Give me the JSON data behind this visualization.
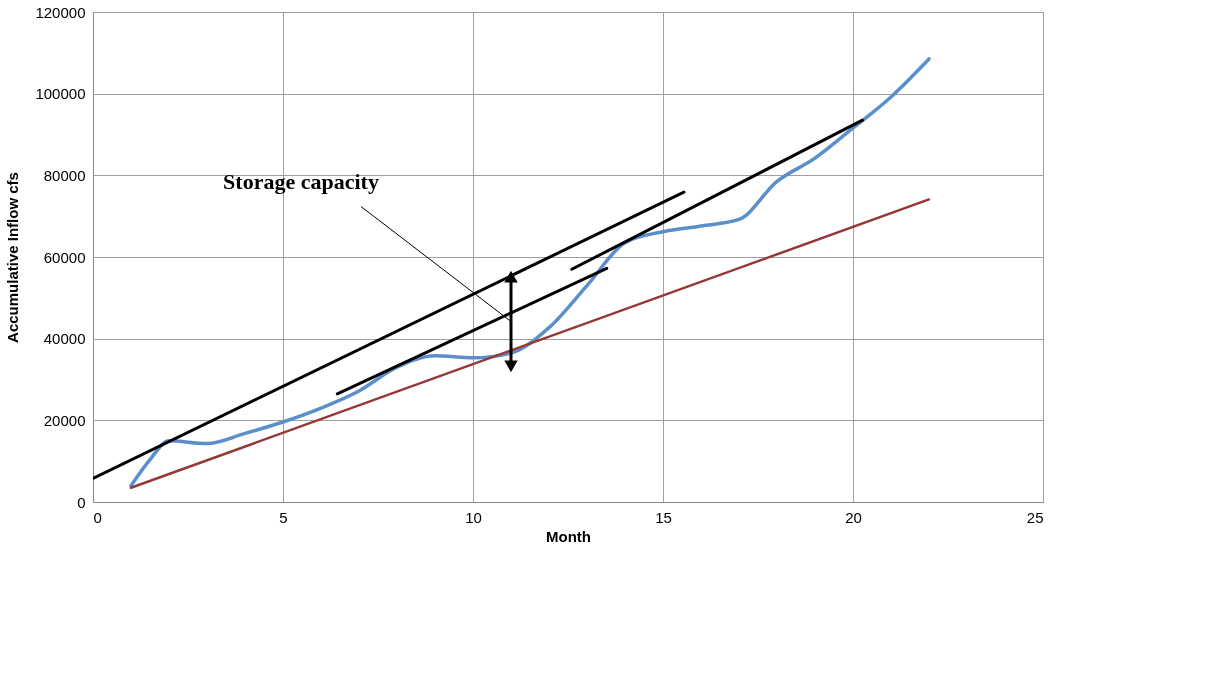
{
  "chart_data": {
    "type": "line",
    "xlabel": "Month",
    "ylabel": "Accumulative Inflow cfs",
    "xlim": [
      0,
      25
    ],
    "xticks": [
      0,
      5,
      10,
      15,
      20,
      25
    ],
    "ylim": [
      0,
      120000
    ],
    "yticks": [
      0,
      20000,
      40000,
      60000,
      80000,
      100000,
      120000
    ],
    "grid": true,
    "marker": "none",
    "line_style": "solid",
    "annotations": [
      {
        "text": "Storage capacity",
        "x": 11,
        "y": 44200
      }
    ],
    "series": [
      {
        "color": "#5b8fcb",
        "x": [
          1,
          1.5,
          2,
          3,
          4,
          5,
          6,
          7,
          8,
          9,
          10,
          11,
          12,
          13,
          14,
          15,
          16,
          17,
          18,
          19,
          20,
          21,
          22
        ],
        "values": [
          4000,
          10400,
          15000,
          14300,
          16800,
          19600,
          23000,
          27200,
          33000,
          35800,
          35300,
          36500,
          42700,
          53000,
          63500,
          66200,
          67600,
          69200,
          78500,
          84200,
          91600,
          99200,
          108500
        ]
      },
      {
        "color": "#953735",
        "x": [
          1,
          22
        ],
        "values": [
          3500,
          74100
        ]
      },
      {
        "color": "#000000",
        "x": [
          0,
          15.55
        ],
        "values": [
          5800,
          75900
        ]
      },
      {
        "color": "#000000",
        "x": [
          6.43,
          13.52
        ],
        "values": [
          26500,
          57200
        ]
      },
      {
        "color": "#000000",
        "x": [
          12.6,
          20.25
        ],
        "values": [
          57000,
          93500
        ]
      },
      {
        "color": "#000000",
        "x": [
          11,
          11
        ],
        "values": [
          33200,
          55200
        ],
        "marker": "triangle"
      }
    ]
  }
}
